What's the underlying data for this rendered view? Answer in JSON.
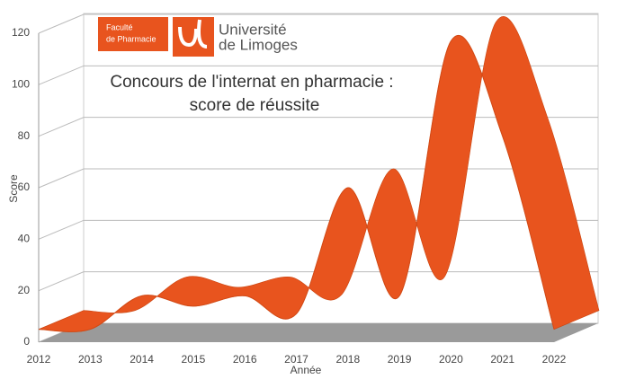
{
  "chart_data": {
    "type": "ribbon",
    "title": "Concours de l'internat en pharmacie :",
    "subtitle": "score de réussite",
    "annotations": [
      "Faculté",
      "de Pharmacie",
      "Université",
      "de Limoges"
    ],
    "x_label": "Année",
    "y_label": "Score",
    "categories": [
      "2012",
      "2013",
      "2014",
      "2015",
      "2016",
      "2017",
      "2018",
      "2019",
      "2020",
      "2021",
      "2022"
    ],
    "values": [
      5,
      5,
      18,
      14,
      18,
      11,
      60,
      18,
      117,
      80,
      5
    ],
    "color": "#e8541e",
    "ylim": [
      0,
      120
    ],
    "yticks": [
      0,
      20,
      40,
      60,
      80,
      100,
      120
    ],
    "grid": true
  }
}
